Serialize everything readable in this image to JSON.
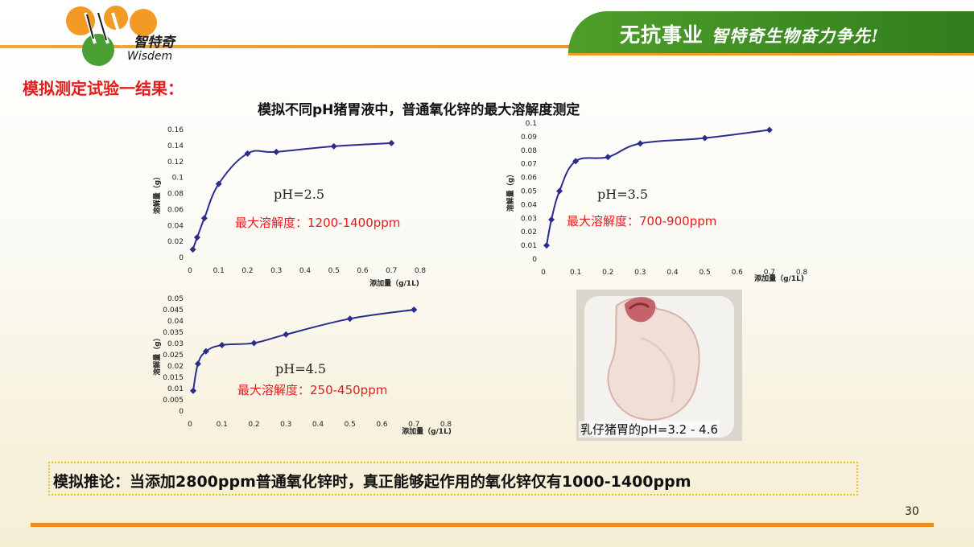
{
  "header": {
    "slogan_main": "无抗事业",
    "slogan_sub": "智特奇生物奋力争先!",
    "logo_text_cn": "智特奇",
    "logo_text_en": "Wisdem"
  },
  "section_title": "模拟测定试验一结果：",
  "figure_title": "模拟不同pH猪胃液中，普通氧化锌的最大溶解度测定",
  "colors": {
    "series": "#2b2d8e",
    "accent_red": "#e31d1d",
    "banner_green": "#3a8a22",
    "line_orange": "#f08a1c"
  },
  "chart_data": [
    {
      "type": "line",
      "xlabel": "添加量（g/1L)",
      "ylabel": "溶解量（g）",
      "xlim": [
        0,
        0.8
      ],
      "ylim": [
        0,
        0.16
      ],
      "xticks": [
        "0",
        "0.1",
        "0.2",
        "0.3",
        "0.4",
        "0.5",
        "0.6",
        "0.7",
        "0.8"
      ],
      "yticks": [
        "0",
        "0.02",
        "0.04",
        "0.06",
        "0.08",
        "0.1",
        "0.12",
        "0.14",
        "0.16"
      ],
      "series": [
        {
          "x": [
            0.01,
            0.025,
            0.05,
            0.1,
            0.2,
            0.3,
            0.5,
            0.7
          ],
          "y": [
            0.01,
            0.025,
            0.049,
            0.092,
            0.13,
            0.132,
            0.139,
            0.143
          ]
        }
      ],
      "annotations": [
        "pH=2.5",
        "最大溶解度：1200-1400ppm"
      ]
    },
    {
      "type": "line",
      "xlabel": "添加量（g/1L)",
      "ylabel": "溶解量（g）",
      "xlim": [
        0,
        0.8
      ],
      "ylim": [
        0,
        0.1
      ],
      "xticks": [
        "0",
        "0.1",
        "0.2",
        "0.3",
        "0.4",
        "0.5",
        "0.6",
        "0.7",
        "0.8"
      ],
      "yticks": [
        "0",
        "0.01",
        "0.02",
        "0.03",
        "0.04",
        "0.05",
        "0.06",
        "0.07",
        "0.08",
        "0.09",
        "0.1"
      ],
      "series": [
        {
          "x": [
            0.01,
            0.025,
            0.05,
            0.1,
            0.2,
            0.3,
            0.5,
            0.7
          ],
          "y": [
            0.01,
            0.029,
            0.05,
            0.072,
            0.075,
            0.085,
            0.089,
            0.095
          ]
        }
      ],
      "annotations": [
        "pH=3.5",
        "最大溶解度：700-900ppm"
      ]
    },
    {
      "type": "line",
      "xlabel": "添加量（g/1L)",
      "ylabel": "溶解量（g）",
      "xlim": [
        0,
        0.8
      ],
      "ylim": [
        0,
        0.05
      ],
      "xticks": [
        "0",
        "0.1",
        "0.2",
        "0.3",
        "0.4",
        "0.5",
        "0.6",
        "0.7",
        "0.8"
      ],
      "yticks": [
        "0",
        "0.005",
        "0.01",
        "0.015",
        "0.02",
        "0.025",
        "0.03",
        "0.035",
        "0.04",
        "0.045",
        "0.05"
      ],
      "series": [
        {
          "x": [
            0.01,
            0.025,
            0.05,
            0.1,
            0.2,
            0.3,
            0.5,
            0.7
          ],
          "y": [
            0.009,
            0.021,
            0.0265,
            0.0293,
            0.0302,
            0.034,
            0.041,
            0.045
          ]
        }
      ],
      "annotations": [
        "pH=4.5",
        "最大溶解度：250-450ppm"
      ]
    }
  ],
  "photo": {
    "caption": "乳仔猪胃的pH=3.2 - 4.6"
  },
  "conclusion": "模拟推论：当添加2800ppm普通氧化锌时，真正能够起作用的氧化锌仅有1000-1400ppm",
  "page_number": "30"
}
